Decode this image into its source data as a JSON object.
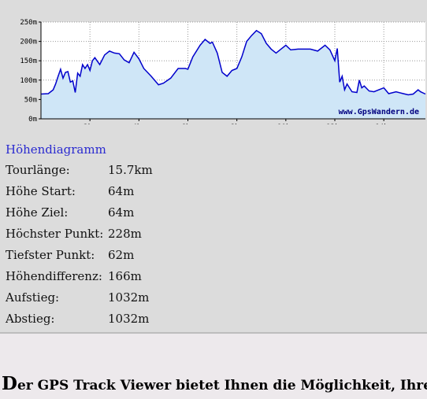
{
  "chart_data": {
    "type": "area",
    "title": "",
    "xlabel": "",
    "ylabel": "",
    "x_ticks": [
      "2km",
      "4km",
      "6km",
      "8km",
      "10km",
      "12km",
      "14km"
    ],
    "y_ticks": [
      "0m",
      "50m",
      "100m",
      "150m",
      "200m",
      "250m"
    ],
    "xlim": [
      0,
      15.7
    ],
    "ylim": [
      0,
      250
    ],
    "grid": true,
    "watermark": "www.GpsWandern.de",
    "colors": {
      "line": "#0000cc",
      "fill": "#cfe6f7",
      "grid": "#999999",
      "background": "#ffffff"
    },
    "series": [
      {
        "x": [
          0,
          0.3,
          0.5,
          0.6,
          0.7,
          0.8,
          0.9,
          1.0,
          1.1,
          1.2,
          1.3,
          1.4,
          1.5,
          1.6,
          1.7,
          1.8,
          1.9,
          2.0,
          2.1,
          2.2,
          2.4,
          2.6,
          2.8,
          3.0,
          3.2,
          3.4,
          3.6,
          3.8,
          4.0,
          4.2,
          4.5,
          4.8,
          5.0,
          5.3,
          5.6,
          5.9,
          6.0,
          6.2,
          6.5,
          6.7,
          6.9,
          7.0,
          7.2,
          7.4,
          7.6,
          7.8,
          8.0,
          8.2,
          8.4,
          8.6,
          8.8,
          9.0,
          9.2,
          9.4,
          9.6,
          9.8,
          10.0,
          10.2,
          10.5,
          11.0,
          11.3,
          11.6,
          11.8,
          12.0,
          12.1,
          12.2,
          12.3,
          12.4,
          12.5,
          12.7,
          12.9,
          13.0,
          13.1,
          13.2,
          13.4,
          13.6,
          13.8,
          14.0,
          14.2,
          14.5,
          14.8,
          15.0,
          15.2,
          15.4,
          15.5,
          15.7
        ],
        "y": [
          64,
          65,
          75,
          90,
          110,
          128,
          105,
          120,
          122,
          95,
          98,
          68,
          118,
          110,
          140,
          130,
          140,
          125,
          150,
          158,
          140,
          165,
          175,
          170,
          168,
          152,
          145,
          172,
          155,
          130,
          110,
          88,
          92,
          105,
          130,
          130,
          128,
          160,
          190,
          205,
          195,
          198,
          170,
          120,
          110,
          125,
          130,
          160,
          200,
          215,
          228,
          220,
          195,
          180,
          170,
          180,
          190,
          178,
          180,
          180,
          175,
          190,
          178,
          150,
          182,
          95,
          110,
          75,
          90,
          70,
          68,
          100,
          80,
          85,
          72,
          70,
          75,
          80,
          65,
          70,
          65,
          62,
          64,
          75,
          70,
          64
        ]
      }
    ]
  },
  "stats": {
    "title": "Höhendiagramm",
    "rows": [
      {
        "label": "Tourlänge:",
        "value": "15.7km"
      },
      {
        "label": "Höhe Start:",
        "value": "64m"
      },
      {
        "label": "Höhe Ziel:",
        "value": "64m"
      },
      {
        "label": "Höchster Punkt:",
        "value": "228m"
      },
      {
        "label": "Tiefster Punkt:",
        "value": "62m"
      },
      {
        "label": "Höhendifferenz:",
        "value": "166m"
      },
      {
        "label": "Aufstieg:",
        "value": "1032m"
      },
      {
        "label": "Abstieg:",
        "value": "1032m"
      }
    ]
  },
  "footer": {
    "initial": "D",
    "text": "er GPS Track Viewer bietet Ihnen die Möglichkeit, Ihre e"
  }
}
